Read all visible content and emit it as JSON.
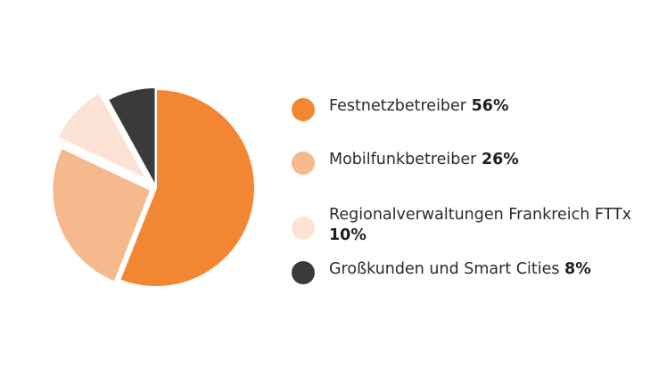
{
  "chart_data": {
    "type": "pie",
    "slices": [
      {
        "label": "Festnetzbetreiber",
        "value": 56,
        "value_label": "56%",
        "color": "#F38633"
      },
      {
        "label": "Mobilfunkbetreiber",
        "value": 26,
        "value_label": "26%",
        "color": "#F6B98E"
      },
      {
        "label": "Regionalverwaltungen Frankreich FTTx",
        "value": 10,
        "value_label": "10%",
        "color": "#FCE3D5"
      },
      {
        "label": "Großkunden und Smart Cities",
        "value": 8,
        "value_label": "8%",
        "color": "#3A3A3A"
      }
    ],
    "legend_position": "right"
  }
}
